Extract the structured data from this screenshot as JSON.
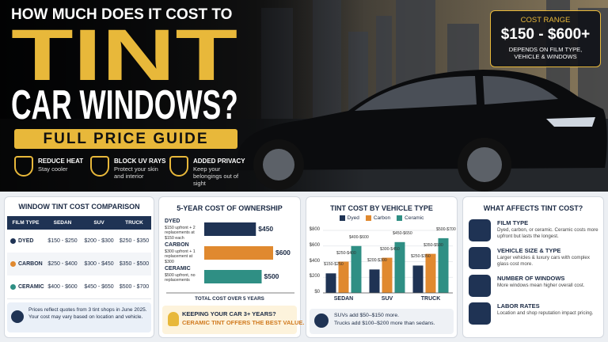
{
  "hero": {
    "kicker": "HOW MUCH DOES IT COST TO",
    "headline": "TINT",
    "headline2": "CAR WINDOWS?",
    "banner": "FULL PRICE GUIDE",
    "features": [
      {
        "title": "REDUCE HEAT",
        "text": "Stay cooler"
      },
      {
        "title": "BLOCK UV RAYS",
        "text": "Protect your skin and interior"
      },
      {
        "title": "ADDED PRIVACY",
        "text": "Keep your belongings out of sight"
      }
    ],
    "cost_box": {
      "label": "COST RANGE",
      "range": "$150 - $600+",
      "note": "DEPENDS ON FILM TYPE, VEHICLE & WINDOWS"
    }
  },
  "table": {
    "title": "WINDOW TINT COST COMPARISON",
    "header": [
      "FILM TYPE",
      "SEDAN",
      "SUV",
      "TRUCK"
    ],
    "rows": [
      [
        "DYED",
        "$150 - $250",
        "$200 - $300",
        "$250 - $350"
      ],
      [
        "CARBON",
        "$250 - $400",
        "$300 - $450",
        "$350 - $500"
      ],
      [
        "CERAMIC",
        "$400 - $600",
        "$450 - $650",
        "$500 - $700"
      ]
    ],
    "note": "Prices reflect quotes from 3 tint shops in June 2025. Your cost may vary based on location and vehicle."
  },
  "chart_data": [
    {
      "type": "hbar",
      "title": "5-YEAR COST OF OWNERSHIP",
      "categories": [
        "DYED",
        "CARBON",
        "CERAMIC"
      ],
      "descriptions": [
        "$150 upfront + 2 replacements at $150 each",
        "$300 upfront + 1 replacement at $300",
        "$500 upfront, no replacements"
      ],
      "values": [
        450,
        600,
        500
      ],
      "value_labels": [
        "$450",
        "$600",
        "$500"
      ],
      "colors": [
        "#1f3354",
        "#e0892f",
        "#2f8f84"
      ],
      "xlim": [
        0,
        600
      ],
      "xlabel": "TOTAL COST OVER 5 YEARS",
      "callout": [
        "KEEPING YOUR CAR 3+ YEARS?",
        "CERAMIC TINT OFFERS THE BEST VALUE."
      ]
    },
    {
      "type": "bar",
      "title": "TINT COST BY VEHICLE TYPE",
      "categories": [
        "SEDAN",
        "SUV",
        "TRUCK"
      ],
      "series": [
        {
          "name": "Dyed",
          "color": "#1f3354",
          "values": [
            250,
            300,
            350
          ],
          "value_labels": [
            "$150-$250",
            "$200-$300",
            "$250-$350"
          ]
        },
        {
          "name": "Carbon",
          "color": "#e0892f",
          "values": [
            400,
            450,
            500
          ],
          "value_labels": [
            "$250-$400",
            "$300-$450",
            "$350-$500"
          ]
        },
        {
          "name": "Ceramic",
          "color": "#2f8f84",
          "values": [
            600,
            650,
            700
          ],
          "value_labels": [
            "$400-$600",
            "$450-$650",
            "$500-$700"
          ]
        }
      ],
      "ylim": [
        0,
        800
      ],
      "yticks": [
        {
          "value": 0,
          "label": "$0"
        },
        {
          "value": 200,
          "label": "$200"
        },
        {
          "value": 400,
          "label": "$400"
        },
        {
          "value": 600,
          "label": "$600"
        },
        {
          "value": 800,
          "label": "$800"
        }
      ],
      "grid": true,
      "note": [
        "SUVs add $50–$150 more.",
        "Trucks add $100–$200 more than sedans."
      ]
    }
  ],
  "factors": {
    "title": "WHAT AFFECTS TINT COST?",
    "items": [
      {
        "title": "FILM TYPE",
        "text": "Dyed, carbon, or ceramic. Ceramic costs more upfront but lasts the longest."
      },
      {
        "title": "VEHICLE SIZE & TYPE",
        "text": "Larger vehicles & luxury cars with complex glass cost more."
      },
      {
        "title": "NUMBER OF WINDOWS",
        "text": "More windows mean higher overall cost."
      },
      {
        "title": "LABOR RATES",
        "text": "Location and shop reputation impact pricing."
      }
    ]
  }
}
